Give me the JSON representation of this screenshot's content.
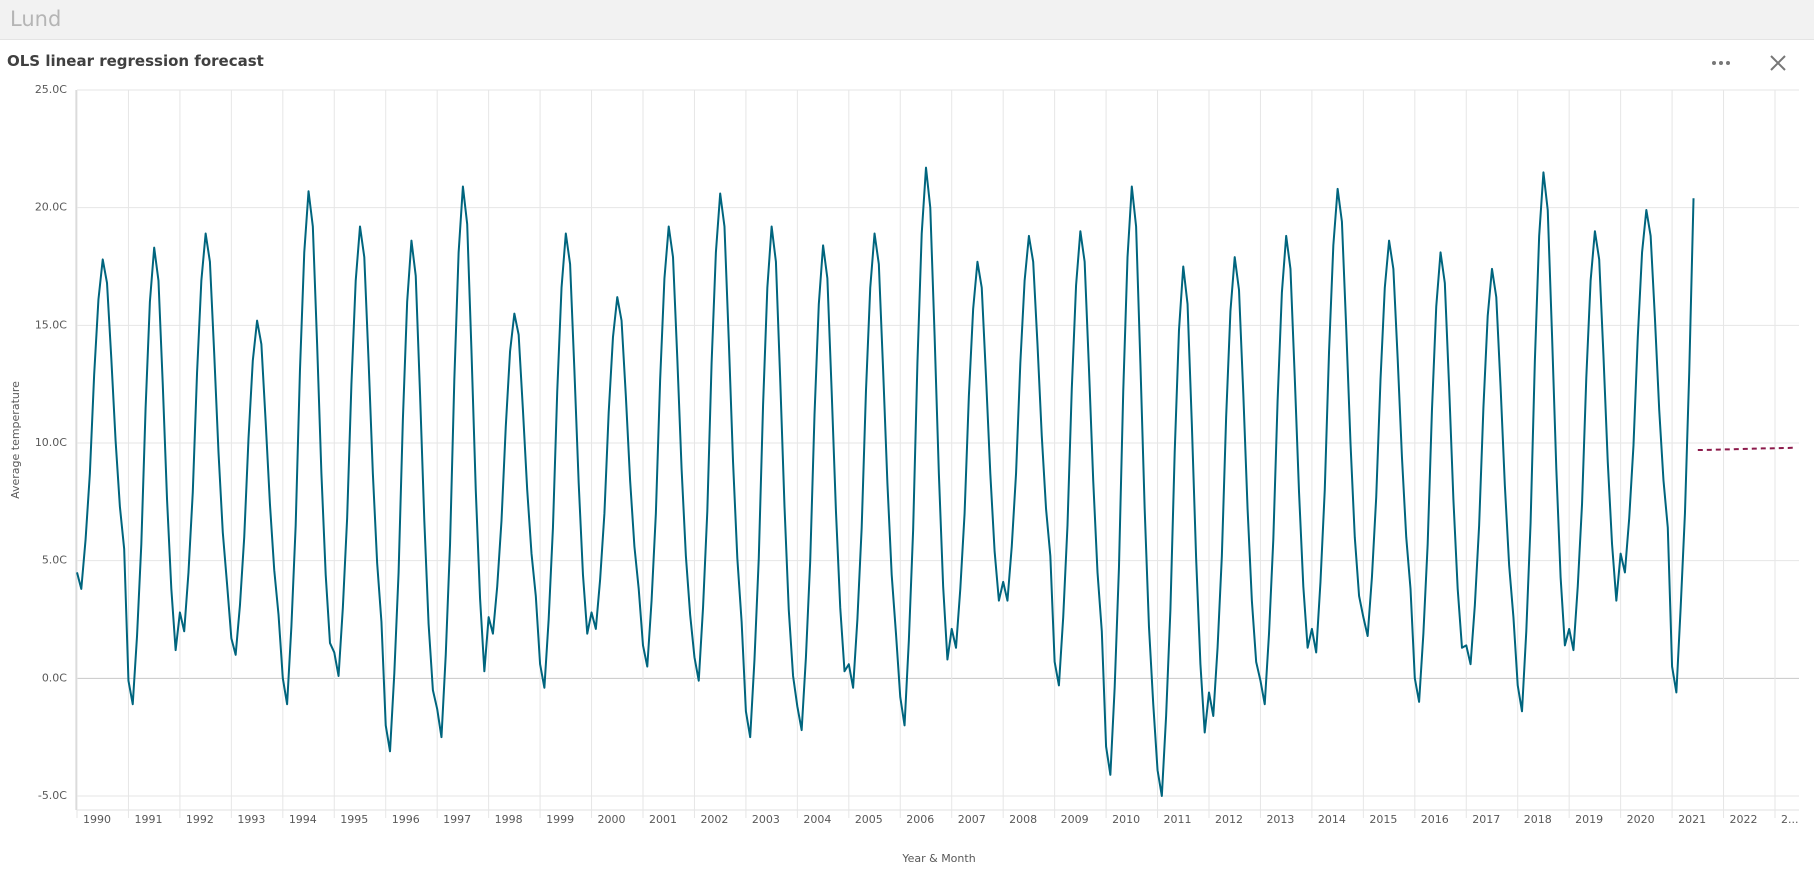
{
  "header": {
    "title": "Lund"
  },
  "panel": {
    "title": "OLS linear regression forecast"
  },
  "chart_data": {
    "type": "line",
    "x_label": "Year & Month",
    "y_label": "Average temperature",
    "grid": true,
    "ylim": [
      -5,
      25
    ],
    "yticks": [
      {
        "value": -5,
        "label": "-5.0C"
      },
      {
        "value": 0,
        "label": "0.0C"
      },
      {
        "value": 5,
        "label": "5.0C"
      },
      {
        "value": 10,
        "label": "10.0C"
      },
      {
        "value": 15,
        "label": "15.0C"
      },
      {
        "value": 20,
        "label": "20.0C"
      },
      {
        "value": 25,
        "label": "25.0C"
      }
    ],
    "categories": [
      "1990",
      null,
      null,
      null,
      null,
      null,
      null,
      null,
      null,
      null,
      null,
      null,
      "1991",
      null,
      null,
      null,
      null,
      null,
      null,
      null,
      null,
      null,
      null,
      null,
      "1992",
      null,
      null,
      null,
      null,
      null,
      null,
      null,
      null,
      null,
      null,
      null,
      "1993",
      null,
      null,
      null,
      null,
      null,
      null,
      null,
      null,
      null,
      null,
      null,
      "1994",
      null,
      null,
      null,
      null,
      null,
      null,
      null,
      null,
      null,
      null,
      null,
      "1995",
      null,
      null,
      null,
      null,
      null,
      null,
      null,
      null,
      null,
      null,
      null,
      "1996",
      null,
      null,
      null,
      null,
      null,
      null,
      null,
      null,
      null,
      null,
      null,
      "1997",
      null,
      null,
      null,
      null,
      null,
      null,
      null,
      null,
      null,
      null,
      null,
      "1998",
      null,
      null,
      null,
      null,
      null,
      null,
      null,
      null,
      null,
      null,
      null,
      "1999",
      null,
      null,
      null,
      null,
      null,
      null,
      null,
      null,
      null,
      null,
      null,
      "2000",
      null,
      null,
      null,
      null,
      null,
      null,
      null,
      null,
      null,
      null,
      null,
      "2001",
      null,
      null,
      null,
      null,
      null,
      null,
      null,
      null,
      null,
      null,
      null,
      "2002",
      null,
      null,
      null,
      null,
      null,
      null,
      null,
      null,
      null,
      null,
      null,
      "2003",
      null,
      null,
      null,
      null,
      null,
      null,
      null,
      null,
      null,
      null,
      null,
      "2004",
      null,
      null,
      null,
      null,
      null,
      null,
      null,
      null,
      null,
      null,
      null,
      "2005",
      null,
      null,
      null,
      null,
      null,
      null,
      null,
      null,
      null,
      null,
      null,
      "2006",
      null,
      null,
      null,
      null,
      null,
      null,
      null,
      null,
      null,
      null,
      null,
      "2007",
      null,
      null,
      null,
      null,
      null,
      null,
      null,
      null,
      null,
      null,
      null,
      "2008",
      null,
      null,
      null,
      null,
      null,
      null,
      null,
      null,
      null,
      null,
      null,
      "2009",
      null,
      null,
      null,
      null,
      null,
      null,
      null,
      null,
      null,
      null,
      null,
      "2010",
      null,
      null,
      null,
      null,
      null,
      null,
      null,
      null,
      null,
      null,
      null,
      "2011",
      null,
      null,
      null,
      null,
      null,
      null,
      null,
      null,
      null,
      null,
      null,
      "2012",
      null,
      null,
      null,
      null,
      null,
      null,
      null,
      null,
      null,
      null,
      null,
      "2013",
      null,
      null,
      null,
      null,
      null,
      null,
      null,
      null,
      null,
      null,
      null,
      "2014",
      null,
      null,
      null,
      null,
      null,
      null,
      null,
      null,
      null,
      null,
      null,
      "2015",
      null,
      null,
      null,
      null,
      null,
      null,
      null,
      null,
      null,
      null,
      null,
      "2016",
      null,
      null,
      null,
      null,
      null,
      null,
      null,
      null,
      null,
      null,
      null,
      "2017",
      null,
      null,
      null,
      null,
      null,
      null,
      null,
      null,
      null,
      null,
      null,
      "2018",
      null,
      null,
      null,
      null,
      null,
      null,
      null,
      null,
      null,
      null,
      null,
      "2019",
      null,
      null,
      null,
      null,
      null,
      null,
      null,
      null,
      null,
      null,
      null,
      "2020",
      null,
      null,
      null,
      null,
      null,
      null,
      null,
      null,
      null,
      null,
      null,
      "2021",
      null,
      null,
      null,
      null,
      null,
      null,
      null,
      null,
      null,
      null,
      null,
      "2022",
      null,
      null,
      null,
      null,
      null,
      null,
      null,
      null,
      null,
      null,
      null,
      "2...",
      null,
      null,
      null,
      null,
      null
    ],
    "series": [
      {
        "color": "#00657e",
        "line_style": "solid",
        "values": [
          4.5,
          3.8,
          5.9,
          8.7,
          12.9,
          16.1,
          17.8,
          16.8,
          13.6,
          10.1,
          7.3,
          5.5,
          -0.1,
          -1.1,
          1.8,
          5.7,
          11.5,
          16.0,
          18.3,
          16.9,
          12.5,
          7.6,
          3.8,
          1.2,
          2.8,
          2.0,
          4.5,
          7.9,
          13.0,
          16.9,
          18.9,
          17.7,
          13.8,
          9.6,
          6.2,
          4.0,
          1.7,
          1.0,
          3.1,
          6.0,
          10.2,
          13.5,
          15.2,
          14.2,
          10.9,
          7.4,
          4.6,
          2.7,
          0.0,
          -1.1,
          2.2,
          6.5,
          13.1,
          18.1,
          20.7,
          19.2,
          14.2,
          8.7,
          4.4,
          1.5,
          1.1,
          0.1,
          3.0,
          6.8,
          12.5,
          16.9,
          19.2,
          17.9,
          13.5,
          8.7,
          4.9,
          2.4,
          -2.0,
          -3.1,
          0.2,
          4.5,
          11.0,
          16.0,
          18.6,
          17.1,
          12.1,
          6.7,
          2.3,
          -0.5,
          -1.3,
          -2.5,
          1.0,
          5.7,
          12.7,
          18.1,
          20.9,
          19.3,
          13.9,
          8.0,
          3.4,
          0.3,
          2.6,
          1.9,
          3.9,
          6.7,
          10.7,
          13.9,
          15.5,
          14.6,
          11.4,
          8.0,
          5.3,
          3.5,
          0.6,
          -0.4,
          2.5,
          6.4,
          12.2,
          16.6,
          18.9,
          17.6,
          13.1,
          8.3,
          4.4,
          1.9,
          2.8,
          2.1,
          4.2,
          7.0,
          11.3,
          14.5,
          16.2,
          15.2,
          12.0,
          8.4,
          5.6,
          3.8,
          1.4,
          0.5,
          3.3,
          7.0,
          12.7,
          17.0,
          19.2,
          17.9,
          13.6,
          8.9,
          5.2,
          2.7,
          0.9,
          -0.1,
          3.0,
          7.1,
          13.4,
          18.1,
          20.6,
          19.2,
          14.4,
          9.2,
          5.1,
          2.4,
          -1.4,
          -2.5,
          0.8,
          5.1,
          11.6,
          16.6,
          19.2,
          17.7,
          12.7,
          7.3,
          2.9,
          0.1,
          -1.2,
          -2.2,
          0.9,
          5.0,
          11.2,
          15.9,
          18.4,
          17.0,
          12.2,
          7.1,
          3.0,
          0.3,
          0.6,
          -0.4,
          2.5,
          6.4,
          12.2,
          16.6,
          18.9,
          17.6,
          13.1,
          8.3,
          4.4,
          1.9,
          -0.8,
          -2.0,
          1.6,
          6.3,
          13.4,
          18.9,
          21.7,
          20.0,
          14.6,
          8.7,
          3.9,
          0.8,
          2.1,
          1.3,
          3.8,
          7.0,
          12.0,
          15.7,
          17.7,
          16.6,
          12.8,
          8.7,
          5.4,
          3.3,
          4.1,
          3.3,
          5.6,
          8.7,
          13.4,
          16.9,
          18.8,
          17.7,
          14.2,
          10.3,
          7.2,
          5.2,
          0.7,
          -0.3,
          2.6,
          6.5,
          12.3,
          16.7,
          19.0,
          17.7,
          13.2,
          8.4,
          4.5,
          2.0,
          -2.9,
          -4.1,
          -0.4,
          4.7,
          12.2,
          17.9,
          20.9,
          19.2,
          13.4,
          7.2,
          2.2,
          -1.1,
          -3.9,
          -5.0,
          -1.6,
          2.9,
          9.6,
          14.8,
          17.5,
          15.9,
          10.8,
          5.1,
          0.6,
          -2.3,
          -0.6,
          -1.6,
          1.3,
          5.2,
          11.1,
          15.6,
          17.9,
          16.5,
          12.1,
          7.2,
          3.3,
          0.7,
          -0.1,
          -1.1,
          1.9,
          5.9,
          11.8,
          16.4,
          18.8,
          17.4,
          12.8,
          7.9,
          3.9,
          1.3,
          2.1,
          1.1,
          4.1,
          8.0,
          13.9,
          18.4,
          20.8,
          19.4,
          14.9,
          10.0,
          6.0,
          3.5,
          2.6,
          1.8,
          4.3,
          7.7,
          12.7,
          16.6,
          18.6,
          17.4,
          13.6,
          9.4,
          6.0,
          3.8,
          0.0,
          -1.0,
          1.9,
          5.7,
          11.4,
          15.8,
          18.1,
          16.8,
          12.4,
          7.6,
          3.8,
          1.3,
          1.4,
          0.6,
          3.1,
          6.5,
          11.5,
          15.4,
          17.4,
          16.2,
          12.4,
          8.2,
          4.8,
          2.6,
          -0.3,
          -1.4,
          2.0,
          6.6,
          13.5,
          18.8,
          21.5,
          19.9,
          14.6,
          8.9,
          4.3,
          1.4,
          2.1,
          1.2,
          3.9,
          7.4,
          12.8,
          16.9,
          19.0,
          17.8,
          13.7,
          9.2,
          5.7,
          3.3,
          5.3,
          4.5,
          6.8,
          9.9,
          14.5,
          18.1,
          19.9,
          18.8,
          15.3,
          11.4,
          8.4,
          6.4,
          0.5,
          -0.6,
          3.0,
          7.0,
          13.0,
          20.4,
          null,
          null,
          null,
          null,
          null,
          null,
          null,
          null,
          null,
          null,
          null,
          null,
          null,
          null,
          null,
          null,
          null,
          null,
          null,
          null,
          null,
          null,
          null,
          null
        ]
      },
      {
        "color": "#8c1a4b",
        "line_style": "dashed",
        "values": [
          null,
          null,
          null,
          null,
          null,
          null,
          null,
          null,
          null,
          null,
          null,
          null,
          null,
          null,
          null,
          null,
          null,
          null,
          null,
          null,
          null,
          null,
          null,
          null,
          null,
          null,
          null,
          null,
          null,
          null,
          null,
          null,
          null,
          null,
          null,
          null,
          null,
          null,
          null,
          null,
          null,
          null,
          null,
          null,
          null,
          null,
          null,
          null,
          null,
          null,
          null,
          null,
          null,
          null,
          null,
          null,
          null,
          null,
          null,
          null,
          null,
          null,
          null,
          null,
          null,
          null,
          null,
          null,
          null,
          null,
          null,
          null,
          null,
          null,
          null,
          null,
          null,
          null,
          null,
          null,
          null,
          null,
          null,
          null,
          null,
          null,
          null,
          null,
          null,
          null,
          null,
          null,
          null,
          null,
          null,
          null,
          null,
          null,
          null,
          null,
          null,
          null,
          null,
          null,
          null,
          null,
          null,
          null,
          null,
          null,
          null,
          null,
          null,
          null,
          null,
          null,
          null,
          null,
          null,
          null,
          null,
          null,
          null,
          null,
          null,
          null,
          null,
          null,
          null,
          null,
          null,
          null,
          null,
          null,
          null,
          null,
          null,
          null,
          null,
          null,
          null,
          null,
          null,
          null,
          null,
          null,
          null,
          null,
          null,
          null,
          null,
          null,
          null,
          null,
          null,
          null,
          null,
          null,
          null,
          null,
          null,
          null,
          null,
          null,
          null,
          null,
          null,
          null,
          null,
          null,
          null,
          null,
          null,
          null,
          null,
          null,
          null,
          null,
          null,
          null,
          null,
          null,
          null,
          null,
          null,
          null,
          null,
          null,
          null,
          null,
          null,
          null,
          null,
          null,
          null,
          null,
          null,
          null,
          null,
          null,
          null,
          null,
          null,
          null,
          null,
          null,
          null,
          null,
          null,
          null,
          null,
          null,
          null,
          null,
          null,
          null,
          null,
          null,
          null,
          null,
          null,
          null,
          null,
          null,
          null,
          null,
          null,
          null,
          null,
          null,
          null,
          null,
          null,
          null,
          null,
          null,
          null,
          null,
          null,
          null,
          null,
          null,
          null,
          null,
          null,
          null,
          null,
          null,
          null,
          null,
          null,
          null,
          null,
          null,
          null,
          null,
          null,
          null,
          null,
          null,
          null,
          null,
          null,
          null,
          null,
          null,
          null,
          null,
          null,
          null,
          null,
          null,
          null,
          null,
          null,
          null,
          null,
          null,
          null,
          null,
          null,
          null,
          null,
          null,
          null,
          null,
          null,
          null,
          null,
          null,
          null,
          null,
          null,
          null,
          null,
          null,
          null,
          null,
          null,
          null,
          null,
          null,
          null,
          null,
          null,
          null,
          null,
          null,
          null,
          null,
          null,
          null,
          null,
          null,
          null,
          null,
          null,
          null,
          null,
          null,
          null,
          null,
          null,
          null,
          null,
          null,
          null,
          null,
          null,
          null,
          null,
          null,
          null,
          null,
          null,
          null,
          null,
          null,
          null,
          null,
          null,
          null,
          null,
          null,
          null,
          null,
          null,
          null,
          null,
          null,
          null,
          null,
          null,
          null,
          null,
          null,
          null,
          null,
          null,
          null,
          null,
          null,
          null,
          null,
          null,
          null,
          null,
          null,
          null,
          null,
          null,
          null,
          null,
          null,
          null,
          null,
          null,
          null,
          9.7,
          9.7,
          9.71,
          9.71,
          9.72,
          9.72,
          9.73,
          9.73,
          9.73,
          9.74,
          9.74,
          9.75,
          9.75,
          9.76,
          9.76,
          9.77,
          9.77,
          9.77,
          9.78,
          9.78,
          9.79,
          9.79,
          9.8,
          9.8
        ]
      }
    ]
  }
}
